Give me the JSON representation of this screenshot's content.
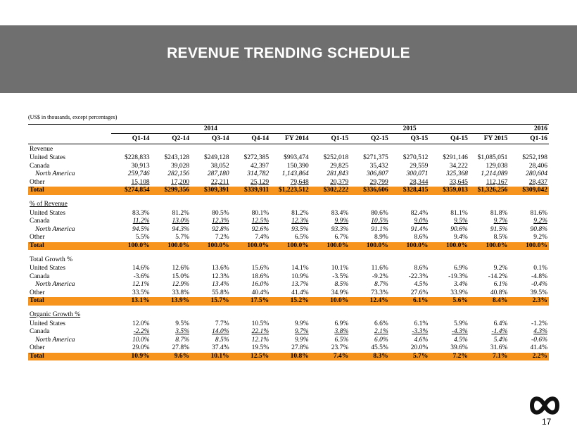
{
  "slide": {
    "title": "REVENUE TRENDING SCHEDULE",
    "units_note": "(US$ in thousands, except percentages)",
    "page_number": "17"
  },
  "header": {
    "years": [
      "2014",
      "2015",
      "2016"
    ],
    "periods": [
      "Q1-14",
      "Q2-14",
      "Q3-14",
      "Q4-14",
      "FY 2014",
      "Q1-15",
      "Q2-15",
      "Q3-15",
      "Q4-15",
      "FY 2015",
      "Q1-16"
    ]
  },
  "sections": [
    {
      "heading": "Revenue",
      "rows": [
        {
          "label": "United States",
          "values": [
            "$228,833",
            "$243,128",
            "$249,128",
            "$272,385",
            "$993,474",
            "$252,018",
            "$271,375",
            "$270,512",
            "$291,146",
            "$1,085,051",
            "$252,198"
          ]
        },
        {
          "label": "Canada",
          "values": [
            "30,913",
            "39,028",
            "38,052",
            "42,397",
            "150,390",
            "29,825",
            "35,432",
            "29,559",
            "34,222",
            "129,038",
            "28,406"
          ]
        },
        {
          "label": "North America",
          "values": [
            "259,746",
            "282,156",
            "287,180",
            "314,782",
            "1,143,864",
            "281,843",
            "306,807",
            "300,071",
            "325,368",
            "1,214,089",
            "280,604"
          ]
        },
        {
          "label": "Other",
          "values": [
            "15,108",
            "17,200",
            "22,211",
            "25,129",
            "79,648",
            "20,379",
            "29,799",
            "28,344",
            "33,645",
            "112,167",
            "28,437"
          ]
        },
        {
          "label": "Total",
          "values": [
            "$274,854",
            "$299,356",
            "$309,391",
            "$339,911",
            "$1,223,512",
            "$302,222",
            "$336,606",
            "$328,415",
            "$359,013",
            "$1,326,256",
            "$309,042"
          ]
        }
      ]
    },
    {
      "heading": "% of Revenue",
      "rows": [
        {
          "label": "United States",
          "values": [
            "83.3%",
            "81.2%",
            "80.5%",
            "80.1%",
            "81.2%",
            "83.4%",
            "80.6%",
            "82.4%",
            "81.1%",
            "81.8%",
            "81.6%"
          ]
        },
        {
          "label": "Canada",
          "values": [
            "11.2%",
            "13.0%",
            "12.3%",
            "12.5%",
            "12.3%",
            "9.9%",
            "10.5%",
            "9.0%",
            "9.5%",
            "9.7%",
            "9.2%"
          ]
        },
        {
          "label": "North America",
          "values": [
            "94.5%",
            "94.3%",
            "92.8%",
            "92.6%",
            "93.5%",
            "93.3%",
            "91.1%",
            "91.4%",
            "90.6%",
            "91.5%",
            "90.8%"
          ]
        },
        {
          "label": "Other",
          "values": [
            "5.5%",
            "5.7%",
            "7.2%",
            "7.4%",
            "6.5%",
            "6.7%",
            "8.9%",
            "8.6%",
            "9.4%",
            "8.5%",
            "9.2%"
          ]
        },
        {
          "label": "Total",
          "values": [
            "100.0%",
            "100.0%",
            "100.0%",
            "100.0%",
            "100.0%",
            "100.0%",
            "100.0%",
            "100.0%",
            "100.0%",
            "100.0%",
            "100.0%"
          ]
        }
      ]
    },
    {
      "heading": "Total Growth %",
      "rows": [
        {
          "label": "United States",
          "values": [
            "14.6%",
            "12.6%",
            "13.6%",
            "15.6%",
            "14.1%",
            "10.1%",
            "11.6%",
            "8.6%",
            "6.9%",
            "9.2%",
            "0.1%"
          ]
        },
        {
          "label": "Canada",
          "values": [
            "-3.6%",
            "15.0%",
            "12.3%",
            "18.6%",
            "10.9%",
            "-3.5%",
            "-9.2%",
            "-22.3%",
            "-19.3%",
            "-14.2%",
            "-4.8%"
          ]
        },
        {
          "label": "North America",
          "values": [
            "12.1%",
            "12.9%",
            "13.4%",
            "16.0%",
            "13.7%",
            "8.5%",
            "8.7%",
            "4.5%",
            "3.4%",
            "6.1%",
            "-0.4%"
          ]
        },
        {
          "label": "Other",
          "values": [
            "33.5%",
            "33.8%",
            "55.8%",
            "40.4%",
            "41.4%",
            "34.9%",
            "73.3%",
            "27.6%",
            "33.9%",
            "40.8%",
            "39.5%"
          ]
        },
        {
          "label": "Total",
          "values": [
            "13.1%",
            "13.9%",
            "15.7%",
            "17.5%",
            "15.2%",
            "10.0%",
            "12.4%",
            "6.1%",
            "5.6%",
            "8.4%",
            "2.3%"
          ]
        }
      ]
    },
    {
      "heading": "Organic Growth %",
      "rows": [
        {
          "label": "United States",
          "values": [
            "12.0%",
            "9.5%",
            "7.7%",
            "10.5%",
            "9.9%",
            "6.9%",
            "6.6%",
            "6.1%",
            "5.9%",
            "6.4%",
            "-1.2%"
          ]
        },
        {
          "label": "Canada",
          "values": [
            "-2.2%",
            "3.5%",
            "14.0%",
            "22.1%",
            "9.7%",
            "3.8%",
            "2.1%",
            "-3.3%",
            "-4.3%",
            "-1.4%",
            "4.3%"
          ]
        },
        {
          "label": "North America",
          "values": [
            "10.0%",
            "8.7%",
            "8.5%",
            "12.1%",
            "9.9%",
            "6.5%",
            "6.0%",
            "4.6%",
            "4.5%",
            "5.4%",
            "-0.6%"
          ]
        },
        {
          "label": "Other",
          "values": [
            "29.0%",
            "27.8%",
            "37.4%",
            "19.5%",
            "27.8%",
            "23.7%",
            "45.5%",
            "20.0%",
            "39.6%",
            "31.6%",
            "41.4%"
          ]
        },
        {
          "label": "Total",
          "values": [
            "10.9%",
            "9.6%",
            "10.1%",
            "12.5%",
            "10.8%",
            "7.4%",
            "8.3%",
            "5.7%",
            "7.2%",
            "7.1%",
            "2.2%"
          ]
        }
      ]
    }
  ],
  "colors": {
    "title_band": "#6f6f6f",
    "total_highlight": "#f7941d"
  },
  "icons": {
    "logo": "infinity-logo-icon"
  }
}
